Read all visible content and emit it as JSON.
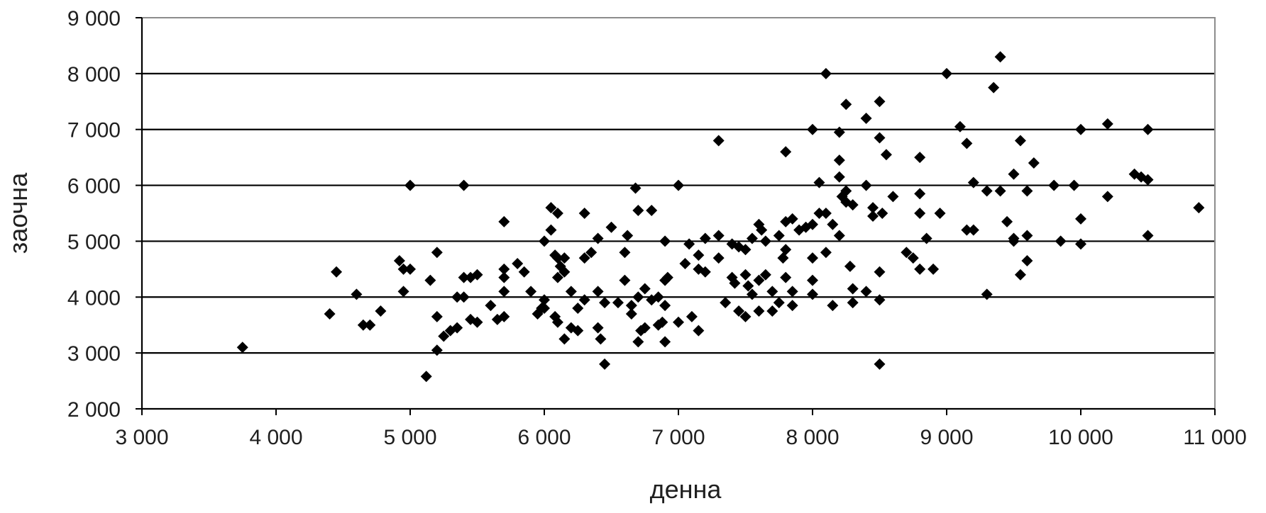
{
  "chart_data": {
    "type": "scatter",
    "title": "",
    "xlabel": "денна",
    "ylabel": "заочна",
    "xlim": [
      3000,
      11000
    ],
    "ylim": [
      2000,
      9000
    ],
    "x_ticks": [
      3000,
      4000,
      5000,
      6000,
      7000,
      8000,
      9000,
      10000,
      11000
    ],
    "y_ticks": [
      2000,
      3000,
      4000,
      5000,
      6000,
      7000,
      8000,
      9000
    ],
    "x_tick_labels": [
      "3 000",
      "4 000",
      "5 000",
      "6 000",
      "7 000",
      "8 000",
      "9 000",
      "10 000",
      "11 000"
    ],
    "y_tick_labels": [
      "2 000",
      "3 000",
      "4 000",
      "5 000",
      "6 000",
      "7 000",
      "8 000",
      "9 000"
    ],
    "grid": "horizontal",
    "legend": "none",
    "colors": {
      "marker": "#000000",
      "gridline": "#000000",
      "plot_border": "#8c8c8c",
      "text": "#1f1f1f"
    },
    "marker": "diamond",
    "series": [
      {
        "points": [
          [
            3750,
            3100
          ],
          [
            4400,
            3700
          ],
          [
            4450,
            4450
          ],
          [
            4600,
            4050
          ],
          [
            4650,
            3500
          ],
          [
            4700,
            3500
          ],
          [
            4780,
            3750
          ],
          [
            4920,
            4650
          ],
          [
            4950,
            4100
          ],
          [
            4950,
            4500
          ],
          [
            5000,
            4500
          ],
          [
            5000,
            6000
          ],
          [
            5120,
            2580
          ],
          [
            5150,
            4300
          ],
          [
            5200,
            4800
          ],
          [
            5200,
            3650
          ],
          [
            5200,
            3050
          ],
          [
            5250,
            3300
          ],
          [
            5300,
            3400
          ],
          [
            5350,
            3450
          ],
          [
            5350,
            4000
          ],
          [
            5400,
            4000
          ],
          [
            5400,
            4350
          ],
          [
            5400,
            6000
          ],
          [
            5450,
            4350
          ],
          [
            5450,
            3600
          ],
          [
            5500,
            3550
          ],
          [
            5500,
            4400
          ],
          [
            5600,
            3850
          ],
          [
            5650,
            3600
          ],
          [
            5700,
            3650
          ],
          [
            5700,
            4500
          ],
          [
            5700,
            4350
          ],
          [
            5700,
            5350
          ],
          [
            5700,
            4100
          ],
          [
            5800,
            4600
          ],
          [
            5850,
            4450
          ],
          [
            5900,
            4100
          ],
          [
            5950,
            3700
          ],
          [
            5980,
            3800
          ],
          [
            6000,
            5000
          ],
          [
            6000,
            3950
          ],
          [
            6000,
            3800
          ],
          [
            6050,
            5600
          ],
          [
            6050,
            5200
          ],
          [
            6080,
            4750
          ],
          [
            6080,
            3650
          ],
          [
            6100,
            4700
          ],
          [
            6100,
            5500
          ],
          [
            6100,
            3550
          ],
          [
            6100,
            4350
          ],
          [
            6120,
            4550
          ],
          [
            6150,
            4450
          ],
          [
            6150,
            4700
          ],
          [
            6150,
            3250
          ],
          [
            6200,
            3450
          ],
          [
            6200,
            4100
          ],
          [
            6250,
            3400
          ],
          [
            6250,
            3800
          ],
          [
            6300,
            5500
          ],
          [
            6300,
            4700
          ],
          [
            6300,
            3950
          ],
          [
            6350,
            4800
          ],
          [
            6400,
            4100
          ],
          [
            6400,
            5050
          ],
          [
            6400,
            3450
          ],
          [
            6420,
            3250
          ],
          [
            6450,
            3900
          ],
          [
            6450,
            2800
          ],
          [
            6500,
            5250
          ],
          [
            6550,
            3900
          ],
          [
            6600,
            4300
          ],
          [
            6600,
            4800
          ],
          [
            6620,
            5100
          ],
          [
            6650,
            3850
          ],
          [
            6650,
            3700
          ],
          [
            6680,
            5950
          ],
          [
            6700,
            5550
          ],
          [
            6700,
            4000
          ],
          [
            6700,
            3200
          ],
          [
            6720,
            3400
          ],
          [
            6750,
            4150
          ],
          [
            6750,
            3450
          ],
          [
            6800,
            5550
          ],
          [
            6800,
            3950
          ],
          [
            6850,
            4000
          ],
          [
            6850,
            3500
          ],
          [
            6880,
            3550
          ],
          [
            6900,
            3200
          ],
          [
            6900,
            4300
          ],
          [
            6900,
            3850
          ],
          [
            6920,
            4350
          ],
          [
            6900,
            5000
          ],
          [
            7000,
            3550
          ],
          [
            7000,
            6000
          ],
          [
            7050,
            4600
          ],
          [
            7080,
            4950
          ],
          [
            7100,
            3650
          ],
          [
            7150,
            4750
          ],
          [
            7150,
            3400
          ],
          [
            7150,
            4500
          ],
          [
            7200,
            4450
          ],
          [
            7200,
            5050
          ],
          [
            7300,
            5100
          ],
          [
            7300,
            6800
          ],
          [
            7300,
            4700
          ],
          [
            7350,
            3900
          ],
          [
            7400,
            4350
          ],
          [
            7400,
            4950
          ],
          [
            7420,
            4250
          ],
          [
            7450,
            4900
          ],
          [
            7450,
            3750
          ],
          [
            7500,
            3650
          ],
          [
            7500,
            4400
          ],
          [
            7500,
            4850
          ],
          [
            7520,
            4200
          ],
          [
            7550,
            4050
          ],
          [
            7550,
            5050
          ],
          [
            7600,
            3750
          ],
          [
            7600,
            4300
          ],
          [
            7600,
            5300
          ],
          [
            7620,
            5200
          ],
          [
            7650,
            4400
          ],
          [
            7650,
            5000
          ],
          [
            7700,
            3750
          ],
          [
            7700,
            4100
          ],
          [
            7750,
            3900
          ],
          [
            7750,
            5100
          ],
          [
            7780,
            4700
          ],
          [
            7800,
            4850
          ],
          [
            7800,
            5350
          ],
          [
            7800,
            6600
          ],
          [
            7800,
            4350
          ],
          [
            7850,
            3850
          ],
          [
            7850,
            5400
          ],
          [
            7850,
            4100
          ],
          [
            7900,
            5200
          ],
          [
            7950,
            5250
          ],
          [
            8000,
            5300
          ],
          [
            8000,
            4700
          ],
          [
            8000,
            4300
          ],
          [
            8000,
            4050
          ],
          [
            8000,
            7000
          ],
          [
            8050,
            5500
          ],
          [
            8050,
            6050
          ],
          [
            8100,
            4800
          ],
          [
            8100,
            8000
          ],
          [
            8100,
            5500
          ],
          [
            8150,
            3850
          ],
          [
            8150,
            5300
          ],
          [
            8200,
            6450
          ],
          [
            8200,
            5100
          ],
          [
            8200,
            6150
          ],
          [
            8220,
            5800
          ],
          [
            8200,
            6950
          ],
          [
            8250,
            7450
          ],
          [
            8250,
            5700
          ],
          [
            8250,
            5900
          ],
          [
            8300,
            3900
          ],
          [
            8300,
            5650
          ],
          [
            8300,
            4150
          ],
          [
            8280,
            4550
          ],
          [
            8400,
            6000
          ],
          [
            8400,
            7200
          ],
          [
            8400,
            4100
          ],
          [
            8450,
            5600
          ],
          [
            8450,
            5450
          ],
          [
            8500,
            3950
          ],
          [
            8500,
            4450
          ],
          [
            8500,
            6850
          ],
          [
            8500,
            7500
          ],
          [
            8500,
            2800
          ],
          [
            8520,
            5500
          ],
          [
            8550,
            6550
          ],
          [
            8600,
            5800
          ],
          [
            8700,
            4800
          ],
          [
            8750,
            4700
          ],
          [
            8800,
            4500
          ],
          [
            8800,
            5850
          ],
          [
            8800,
            6500
          ],
          [
            8800,
            5500
          ],
          [
            8850,
            5050
          ],
          [
            8900,
            4500
          ],
          [
            8950,
            5500
          ],
          [
            9000,
            8000
          ],
          [
            9100,
            7050
          ],
          [
            9150,
            6750
          ],
          [
            9150,
            5200
          ],
          [
            9200,
            6050
          ],
          [
            9200,
            5200
          ],
          [
            9300,
            5900
          ],
          [
            9300,
            4050
          ],
          [
            9350,
            7750
          ],
          [
            9400,
            8300
          ],
          [
            9400,
            5900
          ],
          [
            9450,
            5350
          ],
          [
            9500,
            6200
          ],
          [
            9500,
            5000
          ],
          [
            9500,
            5050
          ],
          [
            9550,
            4400
          ],
          [
            9550,
            6800
          ],
          [
            9600,
            5100
          ],
          [
            9600,
            5900
          ],
          [
            9600,
            4650
          ],
          [
            9650,
            6400
          ],
          [
            9800,
            6000
          ],
          [
            9850,
            5000
          ],
          [
            9950,
            6000
          ],
          [
            10000,
            5400
          ],
          [
            10000,
            7000
          ],
          [
            10000,
            4950
          ],
          [
            10200,
            5800
          ],
          [
            10200,
            7100
          ],
          [
            10400,
            6200
          ],
          [
            10450,
            6150
          ],
          [
            10500,
            7000
          ],
          [
            10500,
            5100
          ],
          [
            10500,
            6100
          ],
          [
            10880,
            5600
          ]
        ]
      }
    ]
  }
}
